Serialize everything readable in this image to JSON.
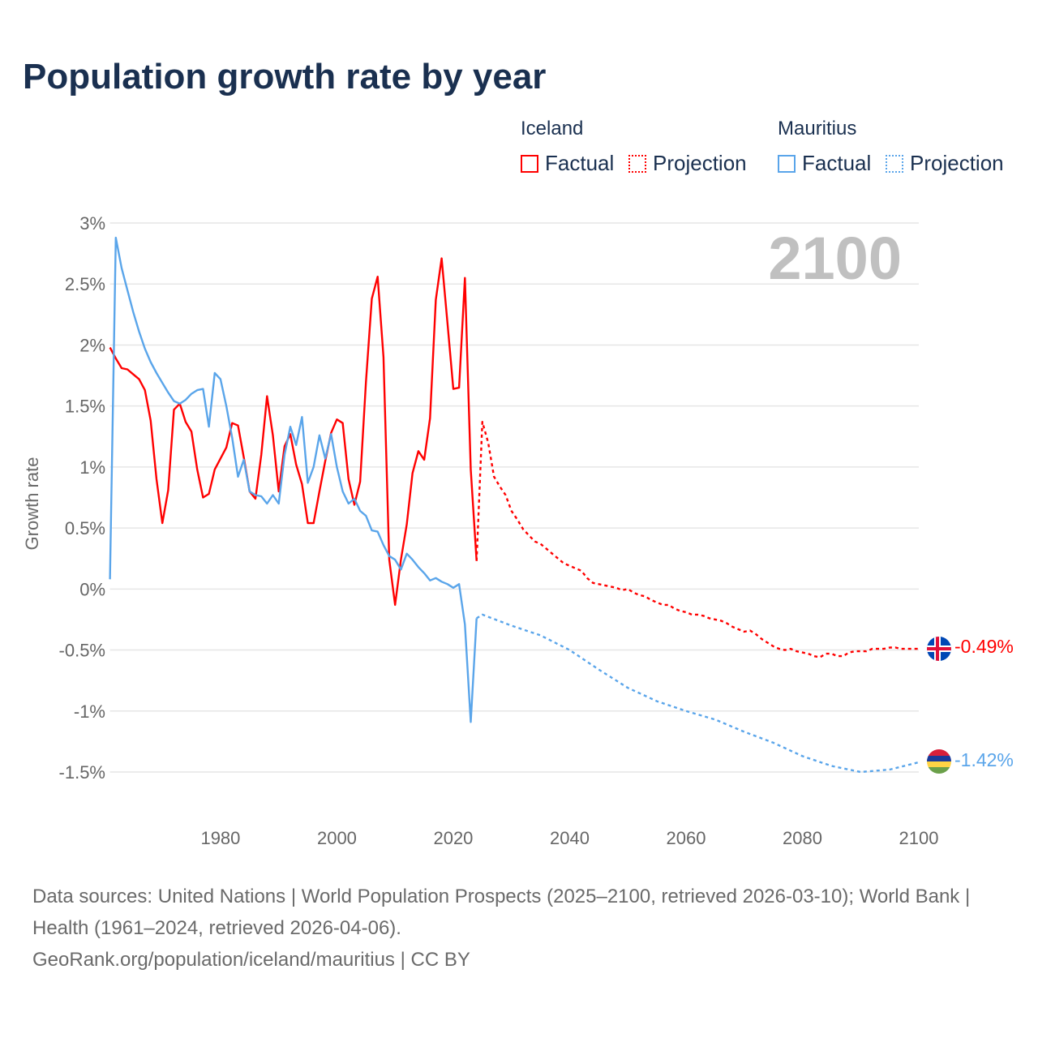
{
  "title": "Population growth rate by year",
  "legend": {
    "groups": [
      {
        "name": "Iceland",
        "factual": "Factual",
        "projection": "Projection",
        "color": "#ff0000"
      },
      {
        "name": "Mauritius",
        "factual": "Factual",
        "projection": "Projection",
        "color": "#5aa5ea"
      }
    ]
  },
  "year_watermark": "2100",
  "footer": {
    "sources": "Data sources: United Nations | World Population Prospects (2025–2100, retrieved 2026-03-10); World Bank | Health (1961–2024, retrieved 2026-04-06).",
    "link": "GeoRank.org/population/iceland/mauritius | CC BY"
  },
  "chart_data": {
    "type": "line",
    "title": "Population growth rate by year",
    "xlabel": "",
    "ylabel": "Growth rate",
    "xlim": [
      1961,
      2100
    ],
    "ylim": [
      -1.5,
      3
    ],
    "grid": true,
    "x_ticks": [
      {
        "v": 1980,
        "label": "1980"
      },
      {
        "v": 2000,
        "label": "2000"
      },
      {
        "v": 2020,
        "label": "2020"
      },
      {
        "v": 2040,
        "label": "2040"
      },
      {
        "v": 2060,
        "label": "2060"
      },
      {
        "v": 2080,
        "label": "2080"
      },
      {
        "v": 2100,
        "label": "2100"
      }
    ],
    "y_ticks": [
      {
        "v": 3,
        "label": "3%"
      },
      {
        "v": 2.5,
        "label": "2.5%"
      },
      {
        "v": 2,
        "label": "2%"
      },
      {
        "v": 1.5,
        "label": "1.5%"
      },
      {
        "v": 1,
        "label": "1%"
      },
      {
        "v": 0.5,
        "label": "0.5%"
      },
      {
        "v": 0,
        "label": "0%"
      },
      {
        "v": -0.5,
        "label": "-0.5%"
      },
      {
        "v": -1,
        "label": "-1%"
      },
      {
        "v": -1.5,
        "label": "-1.5%"
      }
    ],
    "series": [
      {
        "name": "Iceland Factual",
        "color": "#ff0000",
        "dashed": false,
        "x_start": 1961,
        "values": [
          1.98,
          1.89,
          1.81,
          1.8,
          1.76,
          1.72,
          1.63,
          1.38,
          0.9,
          0.54,
          0.81,
          1.47,
          1.52,
          1.37,
          1.29,
          0.98,
          0.75,
          0.78,
          0.98,
          1.07,
          1.16,
          1.36,
          1.34,
          1.08,
          0.8,
          0.74,
          1.1,
          1.58,
          1.26,
          0.8,
          1.17,
          1.27,
          1.02,
          0.86,
          0.54,
          0.54,
          0.8,
          1.05,
          1.28,
          1.39,
          1.36,
          0.9,
          0.69,
          0.88,
          1.7,
          2.38,
          2.56,
          1.9,
          0.24,
          -0.13,
          0.24,
          0.53,
          0.95,
          1.13,
          1.06,
          1.4,
          2.37,
          2.71,
          2.18,
          1.64,
          1.65,
          2.55,
          0.98,
          0.23
        ]
      },
      {
        "name": "Iceland Projection",
        "color": "#ff0000",
        "dashed": true,
        "x_start": 2024,
        "values": [
          0.23,
          1.37,
          1.2,
          0.92,
          0.84,
          0.77,
          0.64,
          0.57,
          0.49,
          0.44,
          0.39,
          0.37,
          0.33,
          0.29,
          0.25,
          0.21,
          0.19,
          0.17,
          0.15,
          0.09,
          0.05,
          0.04,
          0.03,
          0.02,
          0.01,
          -0.01,
          0.0,
          -0.03,
          -0.05,
          -0.06,
          -0.09,
          -0.11,
          -0.13,
          -0.13,
          -0.16,
          -0.18,
          -0.19,
          -0.21,
          -0.21,
          -0.22,
          -0.24,
          -0.25,
          -0.26,
          -0.28,
          -0.31,
          -0.33,
          -0.35,
          -0.34,
          -0.37,
          -0.41,
          -0.44,
          -0.47,
          -0.49,
          -0.5,
          -0.49,
          -0.51,
          -0.52,
          -0.53,
          -0.55,
          -0.56,
          -0.53,
          -0.53,
          -0.55,
          -0.55,
          -0.52,
          -0.51,
          -0.51,
          -0.51,
          -0.49,
          -0.49,
          -0.49,
          -0.48,
          -0.48,
          -0.49,
          -0.49,
          -0.49,
          -0.49
        ],
        "end_label": "-0.49%"
      },
      {
        "name": "Mauritius Factual",
        "color": "#5aa5ea",
        "dashed": false,
        "x_start": 1961,
        "values": [
          0.08,
          2.88,
          2.63,
          2.45,
          2.27,
          2.11,
          1.97,
          1.86,
          1.77,
          1.69,
          1.61,
          1.54,
          1.52,
          1.55,
          1.6,
          1.63,
          1.64,
          1.33,
          1.77,
          1.72,
          1.5,
          1.24,
          0.92,
          1.06,
          0.8,
          0.77,
          0.76,
          0.7,
          0.77,
          0.7,
          1.1,
          1.33,
          1.18,
          1.41,
          0.87,
          1.0,
          1.26,
          1.07,
          1.27,
          1.0,
          0.8,
          0.7,
          0.74,
          0.64,
          0.6,
          0.48,
          0.47,
          0.36,
          0.27,
          0.24,
          0.16,
          0.29,
          0.24,
          0.18,
          0.13,
          0.07,
          0.09,
          0.06,
          0.04,
          0.01,
          0.04,
          -0.29,
          -1.09,
          -0.24
        ]
      },
      {
        "name": "Mauritius Projection",
        "color": "#5aa5ea",
        "dashed": true,
        "x": [
          2024,
          2025,
          2030,
          2035,
          2040,
          2045,
          2050,
          2055,
          2060,
          2065,
          2070,
          2075,
          2080,
          2085,
          2090,
          2095,
          2100
        ],
        "values": [
          -0.24,
          -0.21,
          -0.3,
          -0.38,
          -0.5,
          -0.66,
          -0.81,
          -0.92,
          -1.0,
          -1.07,
          -1.17,
          -1.26,
          -1.37,
          -1.45,
          -1.5,
          -1.48,
          -1.42
        ],
        "end_label": "-1.42%"
      }
    ]
  }
}
